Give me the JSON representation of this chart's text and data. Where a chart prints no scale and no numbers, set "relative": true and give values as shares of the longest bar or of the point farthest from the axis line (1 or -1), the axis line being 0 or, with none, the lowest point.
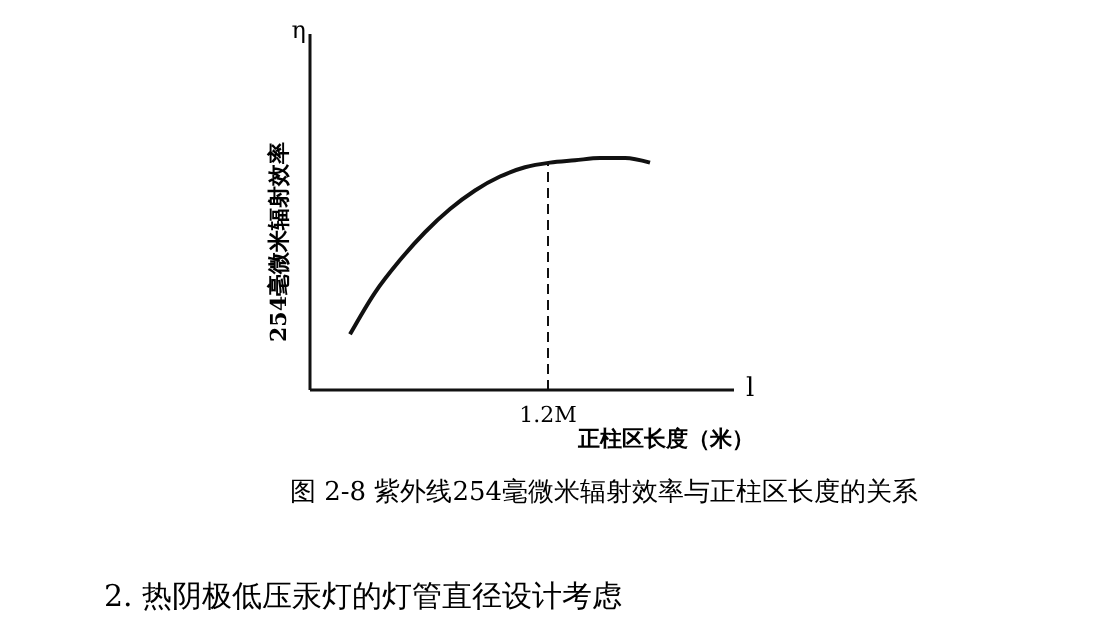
{
  "chart_data": {
    "type": "line",
    "relative": true,
    "xlabel": "正柱区长度（米）",
    "ylabel": "254毫微米辐射效率",
    "categories": [
      null,
      null,
      null,
      null,
      null,
      null,
      null,
      null,
      null,
      null,
      null,
      null,
      null
    ],
    "values": [
      0.24,
      0.42,
      0.56,
      0.68,
      0.78,
      0.86,
      0.92,
      0.96,
      0.98,
      0.99,
      1,
      1,
      0.98
    ],
    "color": "#111111",
    "grid": false,
    "legend": false,
    "annotations": [
      "η",
      "l",
      "1.2M",
      "图 2-8  紫外线254毫微米辐射效率与正柱区长度的关系",
      "2.  热阴极低压汞灯的灯管直径设计考虑"
    ]
  }
}
